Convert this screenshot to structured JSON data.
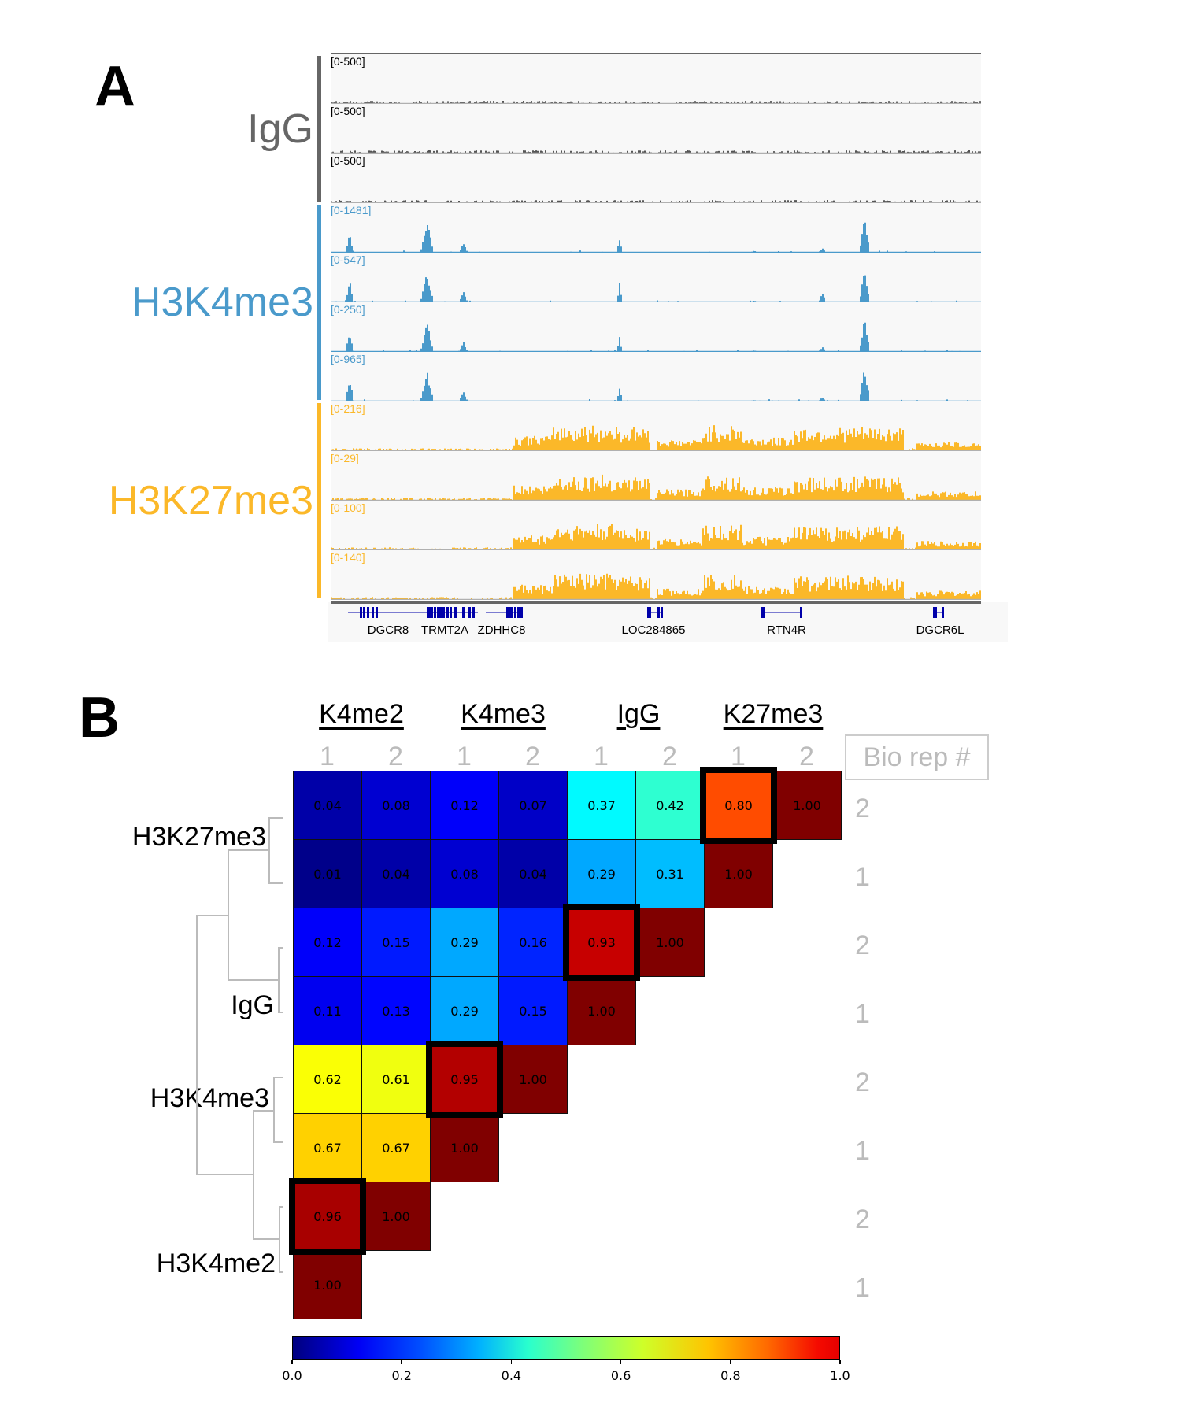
{
  "panel_a": {
    "letter": "A",
    "groups": [
      {
        "name": "IgG",
        "color": "#666666",
        "tracks": [
          "[0-500]",
          "[0-500]",
          "[0-500]"
        ]
      },
      {
        "name": "H3K4me3",
        "color": "#4a9acb",
        "tracks": [
          "[0-1481]",
          "[0-547]",
          "[0-250]",
          "[0-965]"
        ]
      },
      {
        "name": "H3K27me3",
        "color": "#fbb829",
        "tracks": [
          "[0-216]",
          "[0-29]",
          "[0-100]",
          "[0-140]"
        ]
      }
    ],
    "genes": [
      "DGCR8",
      "TRMT2A",
      "ZDHHC8",
      "LOC284865",
      "RTN4R",
      "DGCR6L"
    ],
    "gene_color": "#0000aa"
  },
  "panel_b": {
    "letter": "B",
    "col_groups": [
      "K4me2",
      "K4me3",
      "IgG",
      "K27me3"
    ],
    "col_reps": [
      "1",
      "2",
      "1",
      "2",
      "1",
      "2",
      "1",
      "2"
    ],
    "bio_rep_label": "Bio rep #",
    "row_labels": [
      "H3K27me3",
      "IgG",
      "H3K4me3",
      "H3K4me2"
    ],
    "row_reps": [
      "2",
      "1",
      "2",
      "1",
      "2",
      "1",
      "2",
      "1"
    ]
  },
  "chart_data": {
    "type": "heatmap",
    "title": "",
    "description": "Lower-triangular correlation heatmap of CUT&RUN samples with hierarchical clustering dendrogram",
    "columns": [
      "K4me2 1",
      "K4me2 2",
      "K4me3 1",
      "K4me3 2",
      "IgG 1",
      "IgG 2",
      "K27me3 1",
      "K27me3 2"
    ],
    "rows": [
      "H3K27me3 2",
      "H3K27me3 1",
      "IgG 2",
      "IgG 1",
      "H3K4me3 2",
      "H3K4me3 1",
      "H3K4me2 2",
      "H3K4me2 1"
    ],
    "values": [
      [
        0.04,
        0.08,
        0.12,
        0.07,
        0.37,
        0.42,
        0.8,
        1.0
      ],
      [
        0.01,
        0.04,
        0.08,
        0.04,
        0.29,
        0.31,
        1.0,
        null
      ],
      [
        0.12,
        0.15,
        0.29,
        0.16,
        0.93,
        1.0,
        null,
        null
      ],
      [
        0.11,
        0.13,
        0.29,
        0.15,
        1.0,
        null,
        null,
        null
      ],
      [
        0.62,
        0.61,
        0.95,
        1.0,
        null,
        null,
        null,
        null
      ],
      [
        0.67,
        0.67,
        1.0,
        null,
        null,
        null,
        null,
        null
      ],
      [
        0.96,
        1.0,
        null,
        null,
        null,
        null,
        null,
        null
      ],
      [
        1.0,
        null,
        null,
        null,
        null,
        null,
        null,
        null
      ]
    ],
    "value_labels": [
      [
        "0.04",
        "0.08",
        "0.12",
        "0.07",
        "0.37",
        "0.42",
        "0.80",
        "1.00"
      ],
      [
        "0.01",
        "0.04",
        "0.08",
        "0.04",
        "0.29",
        "0.31",
        "1.00"
      ],
      [
        "0.12",
        "0.15",
        "0.29",
        "0.16",
        "0.93",
        "1.00"
      ],
      [
        "0.11",
        "0.13",
        "0.29",
        "0.15",
        "1.00"
      ],
      [
        "0.62",
        "0.61",
        "0.95",
        "1.00"
      ],
      [
        "0.67",
        "0.67",
        "1.00"
      ],
      [
        "0.96",
        "1.00"
      ],
      [
        "1.00"
      ]
    ],
    "highlighted_cells": [
      [
        0,
        6
      ],
      [
        2,
        4
      ],
      [
        4,
        2
      ],
      [
        6,
        0
      ]
    ],
    "colormap": "jet",
    "colorbar": {
      "range": [
        0.0,
        1.0
      ],
      "ticks": [
        "0.0",
        "0.2",
        "0.4",
        "0.6",
        "0.8",
        "1.0"
      ],
      "placement": "bottom"
    }
  }
}
